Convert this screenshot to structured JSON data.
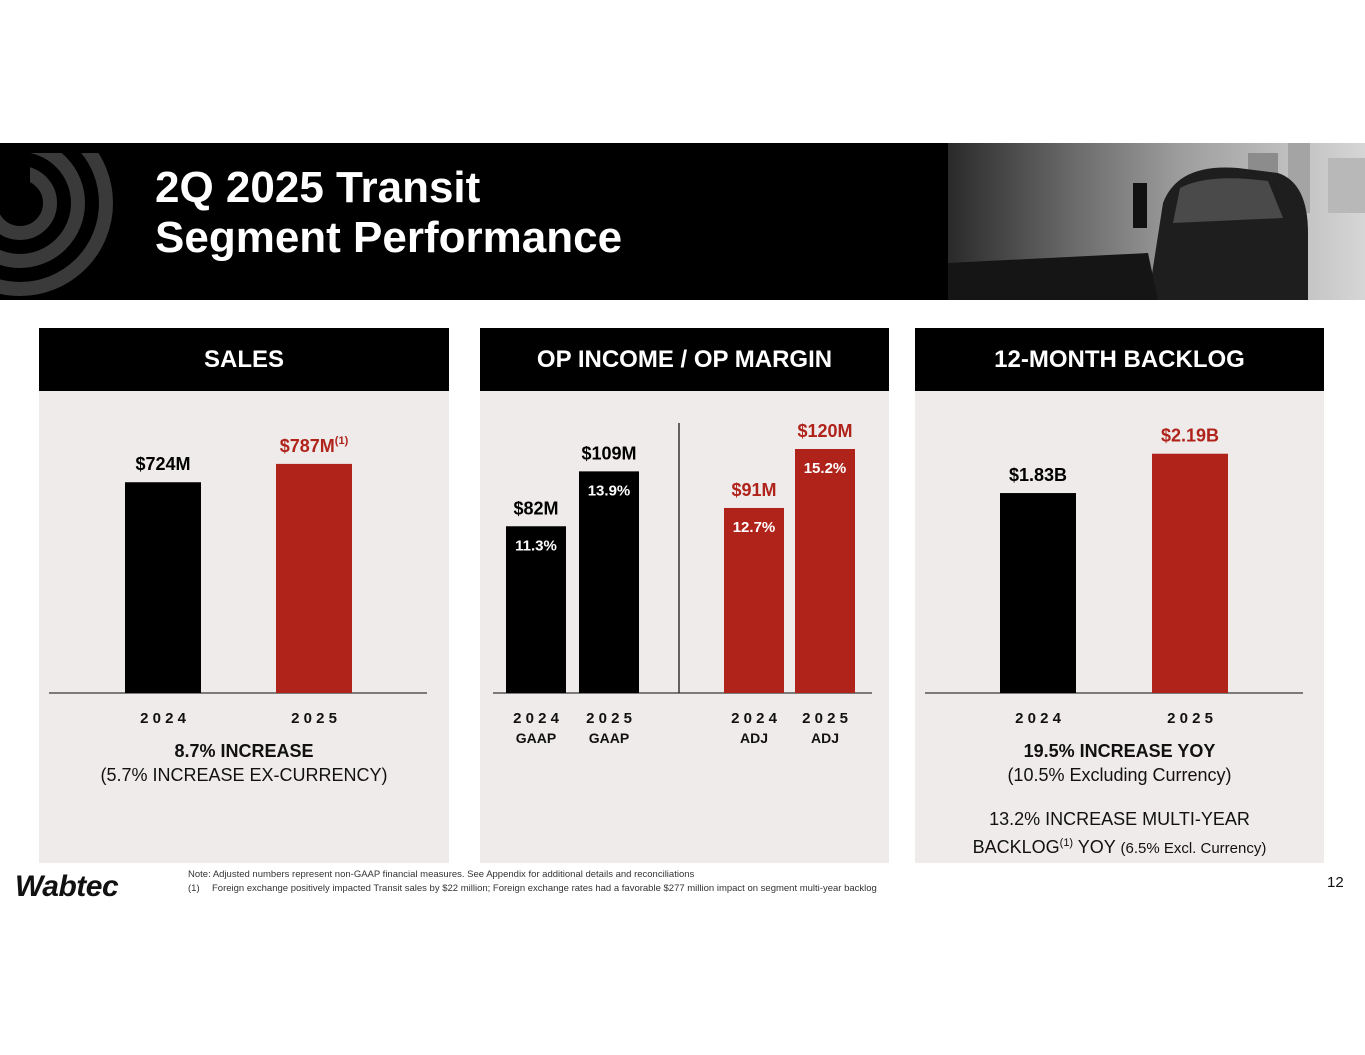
{
  "title": {
    "line1": "2Q 2025 Transit",
    "line2": "Segment Performance"
  },
  "colors": {
    "black": "#000000",
    "red": "#b0231b",
    "panel_bg": "#efebea"
  },
  "sales": {
    "header": "SALES",
    "summary_line1": "8.7% INCREASE",
    "summary_line2": "(5.7% INCREASE EX-CURRENCY)"
  },
  "op_income": {
    "header": "OP INCOME / OP MARGIN"
  },
  "backlog": {
    "header": "12-MONTH BACKLOG",
    "summary_line1": "19.5% INCREASE YOY",
    "summary_line2": "(10.5% Excluding Currency)",
    "summary_line3": "13.2% INCREASE MULTI-YEAR",
    "summary_line4_a": "BACKLOG",
    "summary_line4_sup": "(1)",
    "summary_line4_b": " YOY ",
    "summary_line4_c": "(6.5% Excl. Currency)"
  },
  "chart_data": [
    {
      "type": "bar",
      "title": "SALES",
      "categories": [
        "2024",
        "2025"
      ],
      "values": [
        724,
        787
      ],
      "unit": "$M",
      "labels": [
        "$724M",
        "$787M"
      ],
      "label_superscripts": [
        "",
        "(1)"
      ],
      "colors": [
        "#000000",
        "#b0231b"
      ],
      "ylim": [
        0,
        900
      ]
    },
    {
      "type": "bar",
      "title": "OP INCOME / OP MARGIN",
      "categories": [
        "2024 GAAP",
        "2025 GAAP",
        "2024 ADJ",
        "2025 ADJ"
      ],
      "category_lines": [
        [
          "2024",
          "GAAP"
        ],
        [
          "2025",
          "GAAP"
        ],
        [
          "2024",
          "ADJ"
        ],
        [
          "2025",
          "ADJ"
        ]
      ],
      "values": [
        82,
        109,
        91,
        120
      ],
      "unit": "$M",
      "labels": [
        "$82M",
        "$109M",
        "$91M",
        "$120M"
      ],
      "margins": [
        "11.3%",
        "13.9%",
        "12.7%",
        "15.2%"
      ],
      "colors": [
        "#000000",
        "#000000",
        "#b0231b",
        "#b0231b"
      ],
      "ylim": [
        0,
        150
      ]
    },
    {
      "type": "bar",
      "title": "12-MONTH BACKLOG",
      "categories": [
        "2024",
        "2025"
      ],
      "values": [
        1.83,
        2.19
      ],
      "unit": "$B",
      "labels": [
        "$1.83B",
        "$2.19B"
      ],
      "colors": [
        "#000000",
        "#b0231b"
      ],
      "ylim": [
        0,
        2.7
      ]
    }
  ],
  "footnotes": {
    "note": "Note: Adjusted numbers represent non-GAAP financial measures. See Appendix for additional details and reconciliations",
    "fn1_mark": "(1)",
    "fn1_text": "Foreign exchange positively impacted Transit sales by $22 million; Foreign exchange rates had a favorable $277 million impact on segment multi-year backlog"
  },
  "brand": "Wabtec",
  "page_number": "12"
}
